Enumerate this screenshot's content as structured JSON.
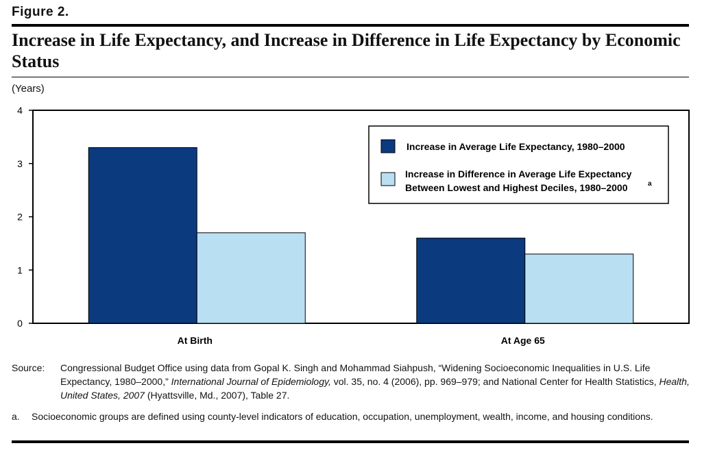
{
  "figure_label": "Figure 2.",
  "title": "Increase in Life Expectancy, and Increase in Difference in Life Expectancy by Economic Status",
  "units": "(Years)",
  "chart_data": {
    "type": "bar",
    "categories": [
      "At Birth",
      "At Age 65"
    ],
    "series": [
      {
        "name": "Increase in Average Life Expectancy, 1980–2000",
        "values": [
          3.3,
          1.6
        ],
        "color": "#0b3a7e"
      },
      {
        "name": "Increase in Difference in Average Life Expectancy Between Lowest and Highest Deciles, 1980–2000",
        "name_line1": "Increase in Difference in Average Life Expectancy",
        "name_line2": "Between Lowest and Highest Deciles, 1980–2000",
        "superscript": "a",
        "values": [
          1.7,
          1.3
        ],
        "color": "#b9dff2"
      }
    ],
    "ylim": [
      0,
      4
    ],
    "yticks": [
      0,
      1,
      2,
      3,
      4
    ],
    "ylabel": "(Years)",
    "legend_position": "top-right",
    "grid": false
  },
  "source": {
    "label": "Source:",
    "parts": [
      {
        "text": "Congressional Budget Office using data from Gopal K. Singh and Mohammad Siahpush, “Widening Socioeconomic Inequalities in U.S. Life Expectancy, 1980–2000,” ",
        "italic": false
      },
      {
        "text": "International Journal of Epidemiology,",
        "italic": true
      },
      {
        "text": " vol. 35, no. 4 (2006), pp. 969–979; and National Center for Health Statistics, ",
        "italic": false
      },
      {
        "text": "Health, United States, 2007",
        "italic": true
      },
      {
        "text": " (Hyattsville, Md., 2007), Table 27.",
        "italic": false
      }
    ]
  },
  "note": {
    "label": "a.",
    "text": "Socioeconomic groups are defined using county-level indicators of education, occupation, unemployment, wealth, income, and housing conditions."
  }
}
